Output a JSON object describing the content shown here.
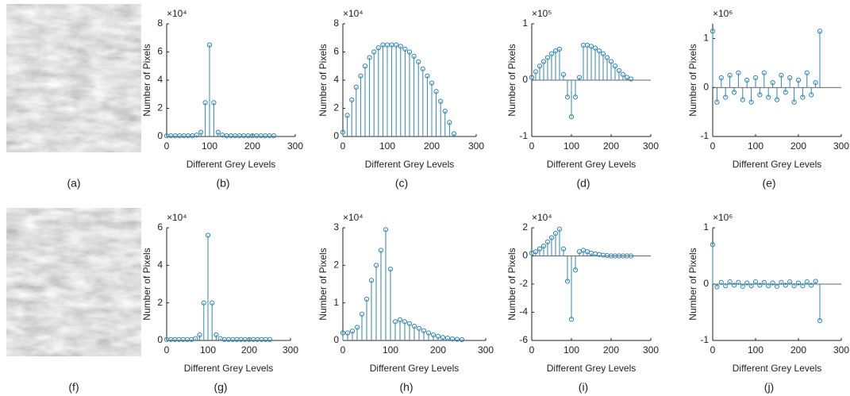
{
  "images": [
    {
      "caption": "(a)"
    },
    {
      "caption": "(f)"
    }
  ],
  "chart_data": [
    {
      "type": "stem",
      "caption": "(b)",
      "scale_label": "×10⁴",
      "xlabel": "Different Grey Levels",
      "ylabel": "Number of Pixels",
      "color": "#2f86b4",
      "xlim": [
        0,
        300
      ],
      "xticks": [
        0,
        100,
        200,
        300
      ],
      "ylim": [
        0,
        8
      ],
      "yticks": [
        0,
        2,
        4,
        6,
        8
      ],
      "x": [
        0,
        10,
        20,
        30,
        40,
        50,
        60,
        70,
        80,
        90,
        100,
        110,
        120,
        130,
        140,
        150,
        160,
        170,
        180,
        190,
        200,
        210,
        220,
        230,
        240,
        250
      ],
      "values": [
        0.05,
        0.05,
        0.05,
        0.05,
        0.05,
        0.05,
        0.05,
        0.1,
        0.3,
        2.4,
        6.5,
        2.4,
        0.3,
        0.1,
        0.05,
        0.05,
        0.05,
        0.05,
        0.05,
        0.05,
        0.05,
        0.05,
        0.05,
        0.05,
        0.05,
        0.05
      ]
    },
    {
      "type": "stem",
      "caption": "(c)",
      "scale_label": "×10⁴",
      "xlabel": "Different Grey Levels",
      "ylabel": "Number of Pixels",
      "color": "#2f86b4",
      "xlim": [
        0,
        300
      ],
      "xticks": [
        0,
        100,
        200,
        300
      ],
      "ylim": [
        0,
        8
      ],
      "yticks": [
        0,
        2,
        4,
        6,
        8
      ],
      "x": [
        0,
        10,
        20,
        30,
        40,
        50,
        60,
        70,
        80,
        90,
        100,
        110,
        120,
        130,
        140,
        150,
        160,
        170,
        180,
        190,
        200,
        210,
        220,
        230,
        240,
        250
      ],
      "values": [
        0.3,
        1.5,
        2.6,
        3.5,
        4.3,
        5,
        5.6,
        6,
        6.3,
        6.5,
        6.5,
        6.5,
        6.5,
        6.4,
        6.2,
        6,
        5.7,
        5.3,
        4.8,
        4.3,
        3.8,
        3.2,
        2.5,
        1.8,
        1,
        0.2
      ]
    },
    {
      "type": "stem",
      "caption": "(d)",
      "scale_label": "×10⁵",
      "xlabel": "Different Grey Levels",
      "ylabel": "Number of Pixels",
      "color": "#2f86b4",
      "xlim": [
        0,
        300
      ],
      "xticks": [
        0,
        100,
        200,
        300
      ],
      "ylim": [
        -1,
        1
      ],
      "yticks": [
        -1,
        0,
        1
      ],
      "x": [
        0,
        10,
        20,
        30,
        40,
        50,
        60,
        70,
        80,
        90,
        100,
        110,
        120,
        130,
        140,
        150,
        160,
        170,
        180,
        190,
        200,
        210,
        220,
        230,
        240,
        250
      ],
      "values": [
        0.05,
        0.15,
        0.25,
        0.33,
        0.4,
        0.47,
        0.52,
        0.55,
        0.1,
        -0.3,
        -0.65,
        -0.3,
        0.05,
        0.62,
        0.62,
        0.6,
        0.57,
        0.52,
        0.47,
        0.4,
        0.33,
        0.25,
        0.17,
        0.1,
        0.05,
        0.02
      ]
    },
    {
      "type": "stem",
      "caption": "(e)",
      "scale_label": "×10⁶",
      "xlabel": "Different Grey Levels",
      "ylabel": "Number of Pixels",
      "color": "#2f86b4",
      "xlim": [
        0,
        300
      ],
      "xticks": [
        0,
        100,
        200,
        300
      ],
      "ylim": [
        -1,
        1.3
      ],
      "yticks": [
        -1,
        0,
        1
      ],
      "x": [
        0,
        10,
        20,
        30,
        40,
        50,
        60,
        70,
        80,
        90,
        100,
        110,
        120,
        130,
        140,
        150,
        160,
        170,
        180,
        190,
        200,
        210,
        220,
        230,
        240,
        250
      ],
      "values": [
        1.15,
        -0.3,
        0.2,
        -0.2,
        0.25,
        -0.1,
        0.3,
        -0.25,
        0.15,
        -0.3,
        0.2,
        -0.15,
        0.3,
        -0.2,
        0.1,
        -0.25,
        0.25,
        -0.1,
        0.2,
        -0.3,
        0.15,
        -0.2,
        0.3,
        -0.15,
        0.1,
        1.15
      ]
    },
    {
      "type": "stem",
      "caption": "(g)",
      "scale_label": "×10⁴",
      "xlabel": "Different Grey Levels",
      "ylabel": "Number of Pixels",
      "color": "#2f86b4",
      "xlim": [
        0,
        300
      ],
      "xticks": [
        0,
        100,
        200,
        300
      ],
      "ylim": [
        0,
        6
      ],
      "yticks": [
        0,
        2,
        4,
        6
      ],
      "x": [
        0,
        10,
        20,
        30,
        40,
        50,
        60,
        70,
        80,
        90,
        100,
        110,
        120,
        130,
        140,
        150,
        160,
        170,
        180,
        190,
        200,
        210,
        220,
        230,
        240,
        250
      ],
      "values": [
        0.05,
        0.05,
        0.05,
        0.05,
        0.05,
        0.05,
        0.05,
        0.1,
        0.3,
        2,
        5.6,
        2,
        0.3,
        0.1,
        0.05,
        0.05,
        0.05,
        0.05,
        0.05,
        0.05,
        0.05,
        0.05,
        0.05,
        0.05,
        0.05,
        0.05
      ]
    },
    {
      "type": "stem",
      "caption": "(h)",
      "scale_label": "×10⁴",
      "xlabel": "Different Grey Levels",
      "ylabel": "Number of Pixels",
      "color": "#2f86b4",
      "xlim": [
        0,
        300
      ],
      "xticks": [
        0,
        100,
        200,
        300
      ],
      "ylim": [
        0,
        3
      ],
      "yticks": [
        0,
        1,
        2,
        3
      ],
      "x": [
        0,
        10,
        20,
        30,
        40,
        50,
        60,
        70,
        80,
        90,
        100,
        110,
        120,
        130,
        140,
        150,
        160,
        170,
        180,
        190,
        200,
        210,
        220,
        230,
        240,
        250
      ],
      "values": [
        0.2,
        0.2,
        0.25,
        0.35,
        0.7,
        1.1,
        1.6,
        2,
        2.4,
        2.95,
        1.9,
        0.5,
        0.55,
        0.5,
        0.45,
        0.38,
        0.32,
        0.26,
        0.2,
        0.15,
        0.11,
        0.08,
        0.06,
        0.04,
        0.03,
        0.02
      ]
    },
    {
      "type": "stem",
      "caption": "(i)",
      "scale_label": "×10⁴",
      "xlabel": "Different Grey Levels",
      "ylabel": "Number of Pixels",
      "color": "#2f86b4",
      "xlim": [
        0,
        300
      ],
      "xticks": [
        0,
        100,
        200,
        300
      ],
      "ylim": [
        -6,
        2
      ],
      "yticks": [
        -6,
        -4,
        -2,
        0,
        2
      ],
      "x": [
        0,
        10,
        20,
        30,
        40,
        50,
        60,
        70,
        80,
        90,
        100,
        110,
        120,
        130,
        140,
        150,
        160,
        170,
        180,
        190,
        200,
        210,
        220,
        230,
        240,
        250
      ],
      "values": [
        0.2,
        0.3,
        0.5,
        0.7,
        1,
        1.3,
        1.6,
        1.9,
        0.5,
        -1.8,
        -4.5,
        -1,
        0.3,
        0.4,
        0.3,
        0.2,
        0.15,
        0.1,
        0.05,
        0.02,
        0,
        0,
        0,
        0,
        0,
        0
      ]
    },
    {
      "type": "stem",
      "caption": "(j)",
      "scale_label": "×10⁶",
      "xlabel": "Different Grey Levels",
      "ylabel": "Number of Pixels",
      "color": "#2f86b4",
      "xlim": [
        0,
        300
      ],
      "xticks": [
        0,
        100,
        200,
        300
      ],
      "ylim": [
        -1,
        1
      ],
      "yticks": [
        -1,
        0,
        1
      ],
      "x": [
        0,
        10,
        20,
        30,
        40,
        50,
        60,
        70,
        80,
        90,
        100,
        110,
        120,
        130,
        140,
        150,
        160,
        170,
        180,
        190,
        200,
        210,
        220,
        230,
        240,
        250
      ],
      "values": [
        0.7,
        -0.05,
        0.03,
        -0.03,
        0.04,
        -0.02,
        0.03,
        -0.04,
        0.02,
        -0.03,
        0.04,
        -0.02,
        0.03,
        -0.03,
        0.02,
        -0.04,
        0.03,
        -0.02,
        0.04,
        -0.03,
        0.02,
        -0.03,
        0.04,
        -0.02,
        0.05,
        -0.65
      ]
    }
  ]
}
